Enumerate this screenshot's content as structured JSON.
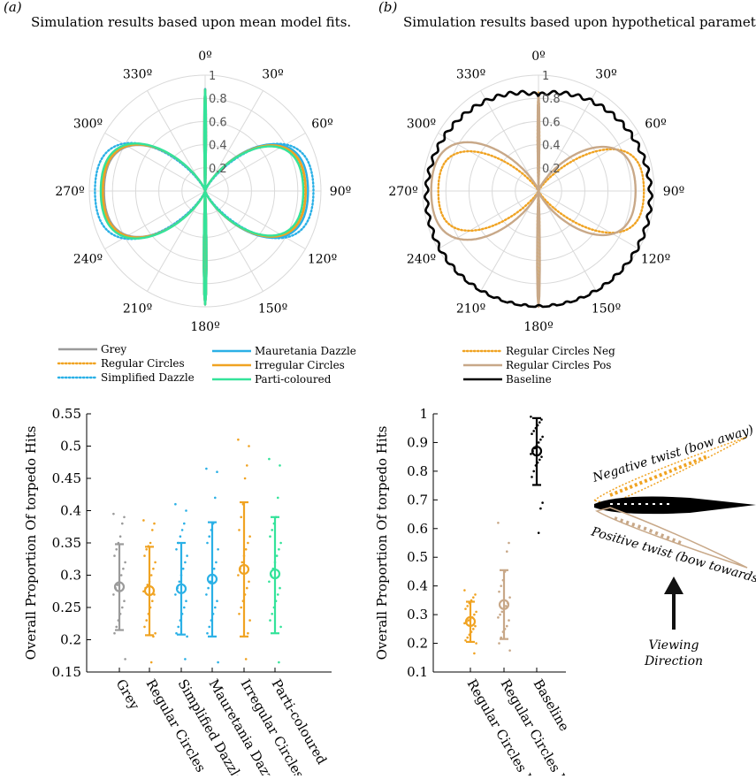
{
  "panels": {
    "a": {
      "label": "(a)",
      "title": "Simulation results based upon mean model fits."
    },
    "b": {
      "label": "(b)",
      "title": "Simulation results based upon hypothetical parameters."
    }
  },
  "colors": {
    "grey": "#9a9a9a",
    "orange": "#f0a322",
    "cyan": "#2ab0e6",
    "green": "#34e39a",
    "tan": "#c8a888",
    "black": "#000000",
    "grid": "#d9d9d9"
  },
  "annotations": {
    "neg": "Negative twist (bow away)",
    "pos": "Positive twist (bow towards)",
    "view1": "Viewing",
    "view2": "Direction"
  },
  "chart_data": [
    {
      "id": "polar-a",
      "type": "line",
      "subtype": "polar",
      "title": "Simulation results based upon mean model fits.",
      "angle_ticks": [
        "0º",
        "30º",
        "60º",
        "90º",
        "120º",
        "150º",
        "180º",
        "210º",
        "240º",
        "270º",
        "300º",
        "330º"
      ],
      "radial_ticks": [
        "0.2",
        "0.4",
        "0.6",
        "0.8",
        "1"
      ],
      "rlim": [
        0,
        1
      ],
      "legend_position": "below",
      "series": [
        {
          "name": "Grey",
          "color": "#9a9a9a",
          "style": "solid",
          "lobe_r": [
            0.88,
            0.86,
            0.85,
            0.87,
            0.88,
            0.87
          ],
          "lobe_w": [
            20,
            21,
            22,
            22,
            21,
            20
          ],
          "spike_top": 0.88,
          "spike_bottom": 0.98
        },
        {
          "name": "Regular Circles",
          "color": "#f0a322",
          "style": "dotted",
          "lobe_r": [
            0.87,
            0.84,
            0.82,
            0.88,
            0.89,
            0.87
          ],
          "lobe_w": [
            20,
            21,
            22,
            22,
            21,
            20
          ],
          "spike_top": 0.88,
          "spike_bottom": 0.98
        },
        {
          "name": "Simplified Dazzle",
          "color": "#2ab0e6",
          "style": "dotted",
          "lobe_r": [
            0.95,
            0.92,
            0.92,
            0.95,
            0.96,
            0.94
          ],
          "lobe_w": [
            19,
            20,
            21,
            21,
            20,
            19
          ],
          "spike_top": 0.88,
          "spike_bottom": 0.98
        },
        {
          "name": "Mauretania Dazzle",
          "color": "#2ab0e6",
          "style": "solid",
          "lobe_r": [
            0.9,
            0.88,
            0.87,
            0.89,
            0.9,
            0.89
          ],
          "lobe_w": [
            20,
            21,
            22,
            22,
            21,
            20
          ],
          "spike_top": 0.88,
          "spike_bottom": 0.98
        },
        {
          "name": "Irregular Circles",
          "color": "#f0a322",
          "style": "solid",
          "lobe_r": [
            0.88,
            0.86,
            0.85,
            0.89,
            0.89,
            0.88
          ],
          "lobe_w": [
            20,
            21,
            22,
            22,
            21,
            20
          ],
          "spike_top": 0.88,
          "spike_bottom": 0.98
        },
        {
          "name": "Parti-coloured",
          "color": "#34e39a",
          "style": "solid",
          "lobe_r": [
            0.85,
            0.84,
            0.85,
            0.9,
            0.91,
            0.89
          ],
          "lobe_w": [
            19,
            21,
            23,
            23,
            21,
            19
          ],
          "spike_top": 0.88,
          "spike_bottom": 0.98
        }
      ]
    },
    {
      "id": "polar-b",
      "type": "line",
      "subtype": "polar",
      "title": "Simulation results based upon hypothetical parameters.",
      "angle_ticks": [
        "0º",
        "30º",
        "60º",
        "90º",
        "120º",
        "150º",
        "180º",
        "210º",
        "240º",
        "270º",
        "300º",
        "330º"
      ],
      "radial_ticks": [
        "0.2",
        "0.4",
        "0.6",
        "0.8",
        "1"
      ],
      "rlim": [
        0,
        1
      ],
      "legend_position": "below",
      "series": [
        {
          "name": "Regular Circles Neg",
          "color": "#f0a322",
          "style": "dotted",
          "lobe_r": [
            0.9,
            0.92,
            0.92,
            0.9,
            0.85,
            0.8
          ],
          "lobe_w": [
            17,
            18,
            19,
            19,
            18,
            17
          ],
          "spike_top": 0.85,
          "spike_bottom": 0.92
        },
        {
          "name": "Regular Circles Pos",
          "color": "#c8a888",
          "style": "solid",
          "lobe_r": [
            0.8,
            0.86,
            0.9,
            0.94,
            0.92,
            0.9
          ],
          "lobe_w": [
            20,
            21,
            22,
            22,
            21,
            20
          ],
          "spike_top": 0.85,
          "spike_bottom": 1.0
        },
        {
          "name": "Baseline",
          "color": "#000000",
          "style": "solid",
          "baseline": true
        }
      ]
    },
    {
      "id": "scatter-a",
      "type": "scatter",
      "ylabel": "Overall Proportion Of torpedo Hits",
      "categories": [
        "Grey",
        "Regular Circles",
        "Simplified Dazzle",
        "Mauretania Dazzle",
        "Irregular Circles",
        "Parti-coloured"
      ],
      "ylim": [
        0.15,
        0.55
      ],
      "yticks": [
        "0.15",
        "0.2",
        "0.25",
        "0.3",
        "0.35",
        "0.4",
        "0.45",
        "0.5",
        "0.55"
      ],
      "series": [
        {
          "name": "Grey",
          "color": "#9a9a9a",
          "mean": 0.282,
          "lower": 0.215,
          "upper": 0.348,
          "points": [
            0.395,
            0.39,
            0.38,
            0.36,
            0.35,
            0.34,
            0.33,
            0.32,
            0.31,
            0.3,
            0.29,
            0.285,
            0.28,
            0.27,
            0.26,
            0.25,
            0.24,
            0.23,
            0.22,
            0.21,
            0.17
          ]
        },
        {
          "name": "Regular Circles",
          "color": "#f0a322",
          "mean": 0.276,
          "lower": 0.207,
          "upper": 0.344,
          "points": [
            0.385,
            0.38,
            0.37,
            0.35,
            0.345,
            0.34,
            0.33,
            0.32,
            0.31,
            0.3,
            0.29,
            0.285,
            0.28,
            0.275,
            0.27,
            0.26,
            0.25,
            0.24,
            0.23,
            0.22,
            0.21,
            0.205,
            0.165
          ]
        },
        {
          "name": "Simplified Dazzle",
          "color": "#2ab0e6",
          "mean": 0.279,
          "lower": 0.208,
          "upper": 0.35,
          "points": [
            0.41,
            0.4,
            0.38,
            0.37,
            0.36,
            0.35,
            0.34,
            0.33,
            0.32,
            0.31,
            0.3,
            0.29,
            0.28,
            0.27,
            0.26,
            0.25,
            0.24,
            0.23,
            0.22,
            0.21,
            0.205,
            0.17
          ]
        },
        {
          "name": "Mauretania Dazzle",
          "color": "#2ab0e6",
          "mean": 0.294,
          "lower": 0.205,
          "upper": 0.382,
          "points": [
            0.465,
            0.46,
            0.42,
            0.38,
            0.37,
            0.36,
            0.35,
            0.34,
            0.32,
            0.31,
            0.3,
            0.29,
            0.28,
            0.27,
            0.26,
            0.25,
            0.24,
            0.23,
            0.22,
            0.21,
            0.165
          ]
        },
        {
          "name": "Irregular Circles",
          "color": "#f0a322",
          "mean": 0.309,
          "lower": 0.205,
          "upper": 0.413,
          "points": [
            0.51,
            0.5,
            0.47,
            0.45,
            0.41,
            0.39,
            0.37,
            0.36,
            0.35,
            0.34,
            0.33,
            0.32,
            0.31,
            0.3,
            0.29,
            0.28,
            0.27,
            0.26,
            0.25,
            0.24,
            0.23,
            0.21,
            0.17
          ]
        },
        {
          "name": "Parti-coloured",
          "color": "#34e39a",
          "mean": 0.302,
          "lower": 0.21,
          "upper": 0.39,
          "points": [
            0.48,
            0.47,
            0.42,
            0.39,
            0.38,
            0.37,
            0.36,
            0.35,
            0.34,
            0.33,
            0.32,
            0.31,
            0.3,
            0.29,
            0.28,
            0.27,
            0.26,
            0.25,
            0.24,
            0.23,
            0.22,
            0.165
          ]
        }
      ]
    },
    {
      "id": "scatter-b",
      "type": "scatter",
      "ylabel": "Overall Proportion Of torpedo Hits",
      "categories": [
        "Regular Circles Neg",
        "Regular Circles Pos",
        "Baseline"
      ],
      "ylim": [
        0.1,
        1.0
      ],
      "yticks": [
        "0.1",
        "0.2",
        "0.3",
        "0.4",
        "0.5",
        "0.6",
        "0.7",
        "0.8",
        "0.9",
        "1"
      ],
      "series": [
        {
          "name": "Regular Circles Neg",
          "color": "#f0a322",
          "mean": 0.276,
          "lower": 0.205,
          "upper": 0.345,
          "points": [
            0.385,
            0.37,
            0.36,
            0.35,
            0.34,
            0.33,
            0.32,
            0.31,
            0.3,
            0.29,
            0.285,
            0.28,
            0.275,
            0.27,
            0.26,
            0.25,
            0.24,
            0.23,
            0.22,
            0.21,
            0.2,
            0.165
          ]
        },
        {
          "name": "Regular Circles Pos",
          "color": "#c8a888",
          "mean": 0.335,
          "lower": 0.215,
          "upper": 0.455,
          "points": [
            0.62,
            0.55,
            0.52,
            0.45,
            0.42,
            0.4,
            0.38,
            0.36,
            0.34,
            0.33,
            0.32,
            0.31,
            0.3,
            0.29,
            0.28,
            0.26,
            0.25,
            0.24,
            0.22,
            0.2,
            0.175
          ]
        },
        {
          "name": "Baseline",
          "color": "#000000",
          "mean": 0.87,
          "lower": 0.752,
          "upper": 0.985,
          "points": [
            0.99,
            0.98,
            0.97,
            0.96,
            0.95,
            0.94,
            0.93,
            0.92,
            0.91,
            0.9,
            0.89,
            0.88,
            0.87,
            0.86,
            0.85,
            0.84,
            0.83,
            0.82,
            0.8,
            0.78,
            0.69,
            0.67,
            0.585
          ]
        }
      ]
    }
  ]
}
